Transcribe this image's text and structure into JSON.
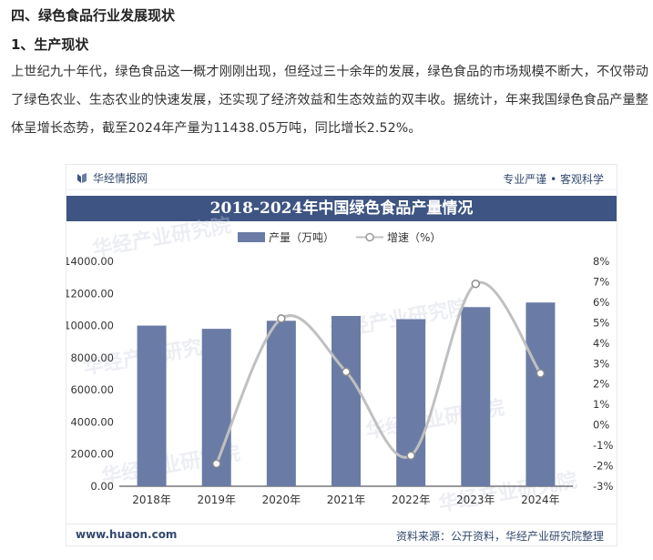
{
  "heading": "四、绿色食品行业发展现状",
  "subheading": "1、生产现状",
  "paragraph": "上世纪九十年代，绿色食品这一概才刚刚出现，但经过三十余年的发展，绿色食品的市场规模不断大，不仅带动了绿色农业、生态农业的快速发展，还实现了经济效益和生态效益的双丰收。据统计，年来我国绿色食品产量整体呈增长态势，截至2024年产量为11438.05万吨，同比增长2.52%。",
  "card": {
    "brand": "华经情报网",
    "slogan": "专业严谨 • 客观科学",
    "site": "www.huaon.com",
    "source": "资料来源：公开资料，华经产业研究院整理",
    "watermark": "华经产业研究院"
  },
  "colors": {
    "bar": "#6a7ca5",
    "line": "#c0c0c0",
    "title_bg": "#3e5482",
    "text": "#33496f"
  },
  "chart_data": {
    "type": "bar",
    "title": "2018-2024年中国绿色食品产量情况",
    "categories": [
      "2018年",
      "2019年",
      "2020年",
      "2021年",
      "2022年",
      "2023年",
      "2024年"
    ],
    "series": [
      {
        "name": "产量（万吨）",
        "type": "bar",
        "axis": "left",
        "values": [
          10000,
          9800,
          10300,
          10600,
          10400,
          11150,
          11438.05
        ]
      },
      {
        "name": "增速（%）",
        "type": "line",
        "axis": "right",
        "values": [
          null,
          -1.9,
          5.2,
          2.6,
          -1.5,
          6.9,
          2.52
        ]
      }
    ],
    "left_axis": {
      "min": 0,
      "max": 14000,
      "ticks": [
        "0.00",
        "2000.00",
        "4000.00",
        "6000.00",
        "8000.00",
        "10000.00",
        "12000.00",
        "14000.00"
      ]
    },
    "right_axis": {
      "min": -3,
      "max": 8,
      "ticks": [
        "-3%",
        "-2%",
        "-1%",
        "0%",
        "1%",
        "2%",
        "3%",
        "4%",
        "5%",
        "6%",
        "7%",
        "8%"
      ]
    },
    "legend_position": "top-center"
  }
}
